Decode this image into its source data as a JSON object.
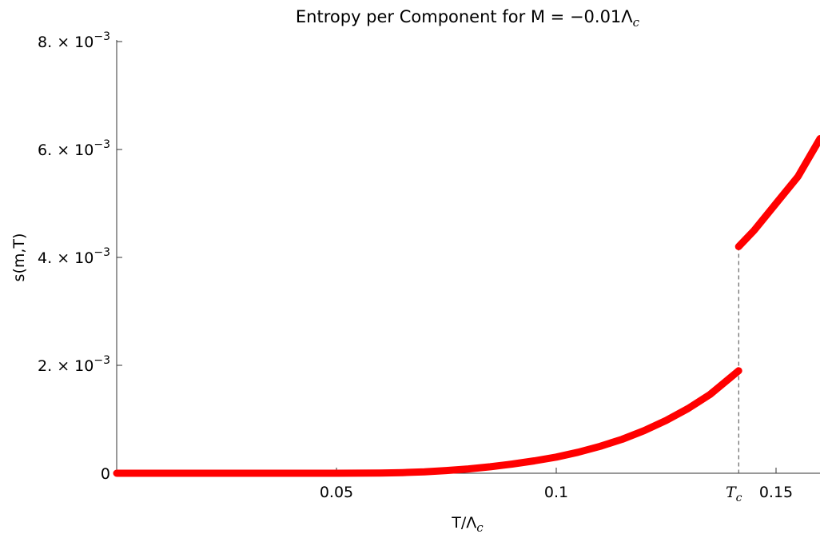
{
  "chart_data": {
    "type": "line",
    "title": {
      "text": "Entropy per Component for M = −0.01Λ",
      "sub": "c"
    },
    "xlabel": {
      "text": "T/Λ",
      "sub": "c"
    },
    "ylabel": "s(m,T)",
    "xlim": [
      0.0,
      0.16
    ],
    "ylim": [
      0.0,
      0.008
    ],
    "grid": false,
    "legend": "none",
    "series_color": "#ff0000",
    "dashed_color": "#444444",
    "x_ticks": [
      {
        "value": 0.05,
        "label": "0.05"
      },
      {
        "value": 0.1,
        "label": "0.1"
      },
      {
        "value": 0.15,
        "label": "0.15"
      }
    ],
    "x_special_tick": {
      "value": 0.1415,
      "label": "T",
      "sub": "c"
    },
    "y_ticks": [
      {
        "value": 0.0,
        "mant": "0",
        "exp": ""
      },
      {
        "value": 0.002,
        "mant": "2. × 10",
        "exp": "−3"
      },
      {
        "value": 0.004,
        "mant": "4. × 10",
        "exp": "−3"
      },
      {
        "value": 0.006,
        "mant": "6. × 10",
        "exp": "−3"
      },
      {
        "value": 0.008,
        "mant": "8. × 10",
        "exp": "−3"
      }
    ],
    "series": [
      {
        "segment": "below-Tc",
        "x": [
          0.0,
          0.02,
          0.04,
          0.05,
          0.06,
          0.065,
          0.07,
          0.075,
          0.08,
          0.085,
          0.09,
          0.095,
          0.1,
          0.105,
          0.11,
          0.115,
          0.12,
          0.125,
          0.13,
          0.135,
          0.1415
        ],
        "y": [
          0.0,
          0.0,
          0.0,
          0.0,
          5e-06,
          1.2e-05,
          2.5e-05,
          5e-05,
          8e-05,
          0.00012,
          0.00017,
          0.00023,
          0.0003,
          0.00039,
          0.0005,
          0.00063,
          0.00079,
          0.00098,
          0.0012,
          0.00146,
          0.0019
        ]
      },
      {
        "segment": "above-Tc",
        "x": [
          0.1415,
          0.145,
          0.15,
          0.155,
          0.16
        ],
        "y": [
          0.0042,
          0.0045,
          0.005,
          0.0055,
          0.0062
        ]
      }
    ],
    "transition": {
      "x": 0.1415,
      "y_low": 0.0019,
      "y_high": 0.0042
    }
  }
}
